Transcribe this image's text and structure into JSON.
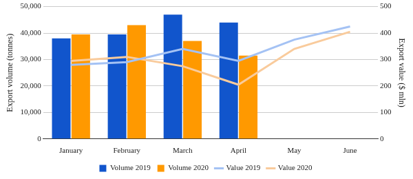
{
  "chart_data": {
    "type": "bar",
    "categories": [
      "January",
      "February",
      "March",
      "April",
      "May",
      "June"
    ],
    "y_label": "Export volume (tonnes)",
    "y2_label": "Export value ($ mln)",
    "ylim": [
      0,
      50000
    ],
    "yticks": [
      0,
      {
        "value": 10000,
        "label": "10,000"
      },
      {
        "value": 20000,
        "label": "20,000"
      },
      {
        "value": 30000,
        "label": "30,000"
      },
      {
        "value": 40000,
        "label": "40,000"
      },
      {
        "value": 50000,
        "label": "50,000"
      }
    ],
    "y2lim": [
      0,
      500
    ],
    "y2ticks": [
      0,
      100,
      200,
      300,
      400,
      500
    ],
    "grid": true,
    "legend": "bottom",
    "series": [
      {
        "name": "Volume 2019",
        "type": "bar",
        "color": "#1155cc",
        "values": [
          38000,
          39500,
          47000,
          44000,
          null,
          null
        ]
      },
      {
        "name": "Volume 2020",
        "type": "bar",
        "color": "#ff9900",
        "values": [
          39500,
          43000,
          37000,
          31500,
          null,
          null
        ]
      },
      {
        "name": "Value 2019",
        "type": "line",
        "axis": "y2",
        "color": "#a4c2f4",
        "values": [
          280,
          290,
          340,
          295,
          375,
          425
        ]
      },
      {
        "name": "Value 2020",
        "type": "line",
        "axis": "y2",
        "color": "#f9cb9c",
        "values": [
          295,
          310,
          275,
          205,
          340,
          405
        ]
      }
    ]
  }
}
